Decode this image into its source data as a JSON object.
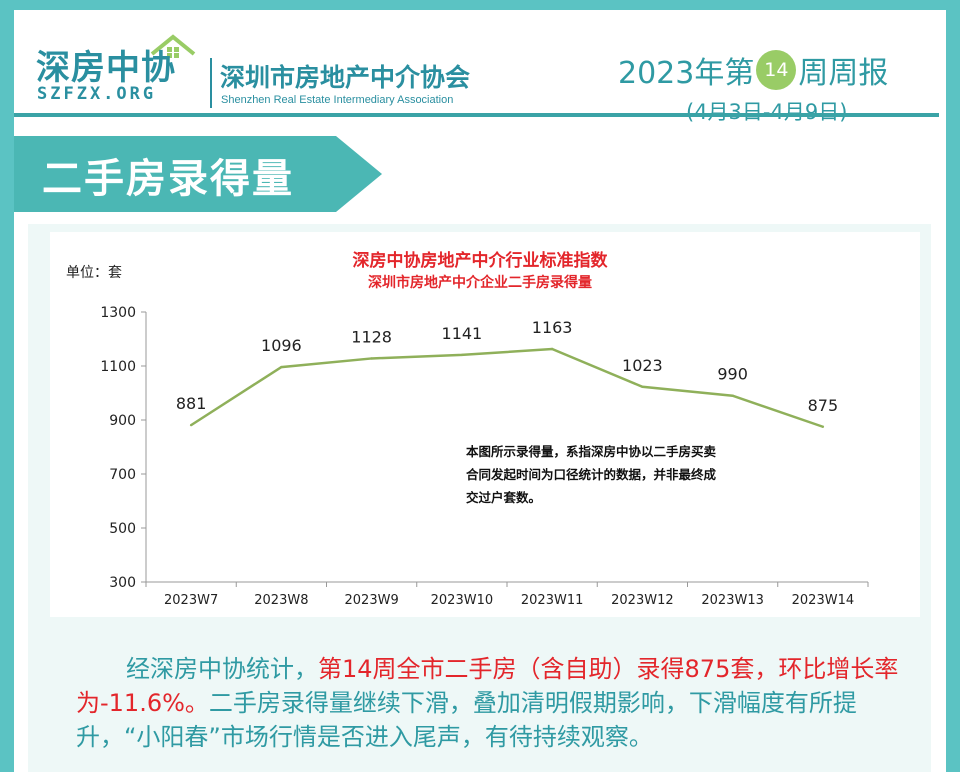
{
  "header": {
    "logo_cn": "深房中协",
    "logo_en": "SZFZX.ORG",
    "association_cn": "深圳市房地产中介协会",
    "association_en": "Shenzhen Real Estate Intermediary Association",
    "week_prefix": "2023年第",
    "week_number": "14",
    "week_suffix": "周周报",
    "date_range": "(4月3日-4月9日)"
  },
  "section": {
    "title": "二手房录得量"
  },
  "chart_data": {
    "type": "line",
    "title": "深房中协房地产中介行业标准指数",
    "subtitle": "深圳市房地产中介企业二手房录得量",
    "unit_label": "单位：套",
    "categories": [
      "2023W7",
      "2023W8",
      "2023W9",
      "2023W10",
      "2023W11",
      "2023W12",
      "2023W13",
      "2023W14"
    ],
    "values": [
      881,
      1096,
      1128,
      1141,
      1163,
      1023,
      990,
      875
    ],
    "ylim": [
      300,
      1300
    ],
    "yticks": [
      300,
      500,
      700,
      900,
      1100,
      1300
    ],
    "line_color": "#8fb05a",
    "grid": false,
    "note": "本图所示录得量，系指深房中协以二手房买卖合同发起时间为口径统计的数据，并非最终成交过户套数。"
  },
  "summary": {
    "part1": "经深房中协统计，",
    "highlight": "第14周全市二手房（含自助）录得875套，环比增长率为-11.6%。",
    "part2": "二手房录得量继续下滑，叠加清明假期影响，下滑幅度有所提升，“小阳春”市场行情是否进入尾声，有待持续观察。"
  },
  "colors": {
    "teal": "#2f9aa3",
    "banner": "#4bb7b4",
    "highlight_red": "#e3262b",
    "badge_green": "#99cc66"
  }
}
